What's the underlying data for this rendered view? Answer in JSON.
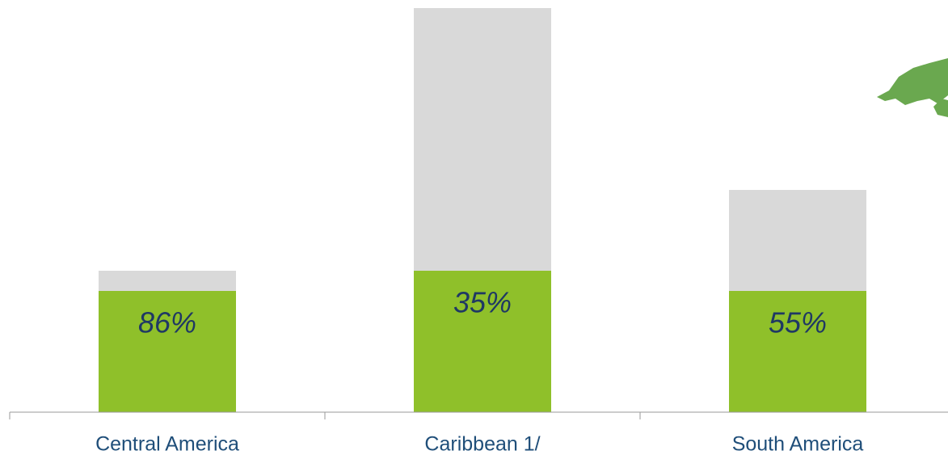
{
  "chart_data": {
    "type": "stacked_bar",
    "categories": [
      "Central America",
      "Caribbean 1/",
      "South America"
    ],
    "series": [
      {
        "color": "#8fc02a",
        "values": [
          150,
          175,
          150
        ]
      },
      {
        "color": "#d9d9d9",
        "values": [
          25,
          325,
          125
        ]
      }
    ],
    "shares": {
      "values": [
        86,
        35,
        55
      ],
      "value_labels": [
        "86%",
        "35%",
        "55%"
      ]
    },
    "ylim": [
      0,
      500
    ]
  }
}
